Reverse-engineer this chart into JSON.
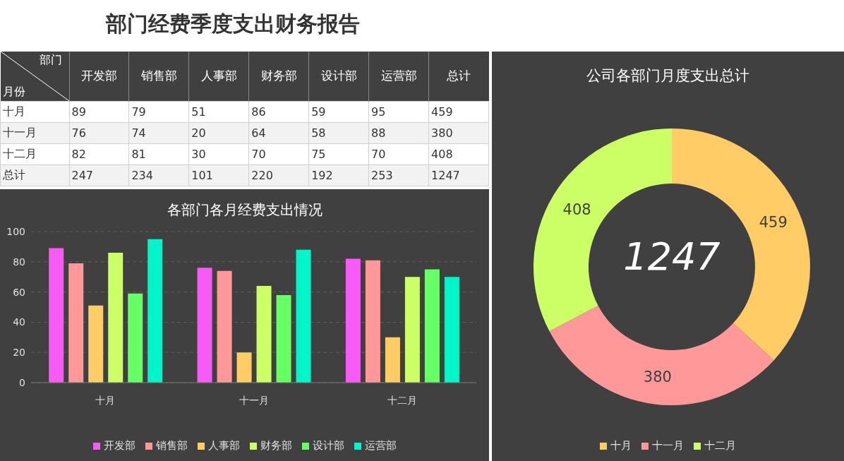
{
  "chart_data": [
    {
      "type": "heatmap",
      "title": "部门经费季度支出财务报告",
      "xlabel": "部门",
      "ylabel": "月份",
      "categories": [
        "开发部",
        "销售部",
        "人事部",
        "财务部",
        "设计部",
        "运营部",
        "总计"
      ],
      "y_categories": [
        "十月",
        "十一月",
        "十二月",
        "总计"
      ],
      "data_labels": true,
      "cells": [
        [
          89,
          79,
          51,
          86,
          59,
          95,
          459
        ],
        [
          76,
          74,
          20,
          64,
          58,
          88,
          380
        ],
        [
          82,
          81,
          30,
          70,
          75,
          70,
          408
        ],
        [
          247,
          234,
          101,
          220,
          192,
          253,
          1247
        ]
      ]
    },
    {
      "type": "bar",
      "title": "各部门各月经费支出情况",
      "categories": [
        "十月",
        "十一月",
        "十二月"
      ],
      "series": [
        {
          "name": "开发部",
          "color": "#f75bf5",
          "values": [
            89,
            76,
            82
          ]
        },
        {
          "name": "销售部",
          "color": "#ff9999",
          "values": [
            79,
            74,
            81
          ]
        },
        {
          "name": "人事部",
          "color": "#ffcc66",
          "values": [
            51,
            20,
            30
          ]
        },
        {
          "name": "财务部",
          "color": "#ccff66",
          "values": [
            86,
            64,
            70
          ]
        },
        {
          "name": "设计部",
          "color": "#66ff66",
          "values": [
            59,
            58,
            75
          ]
        },
        {
          "name": "运营部",
          "color": "#00f5c8",
          "values": [
            95,
            88,
            70
          ]
        }
      ],
      "ylim": [
        0,
        100
      ],
      "yticks": [
        0,
        20,
        40,
        60,
        80,
        100
      ],
      "grid": "y",
      "legend": "bottom"
    },
    {
      "type": "donut",
      "title": "公司各部门月度支出总计",
      "categories": [
        "十月",
        "十一月",
        "十二月"
      ],
      "values": [
        459,
        380,
        408
      ],
      "colors": [
        "#ffcc66",
        "#ff9999",
        "#ccff66"
      ],
      "data_labels": true,
      "annotations": [
        "1247"
      ],
      "legend": "bottom"
    }
  ]
}
